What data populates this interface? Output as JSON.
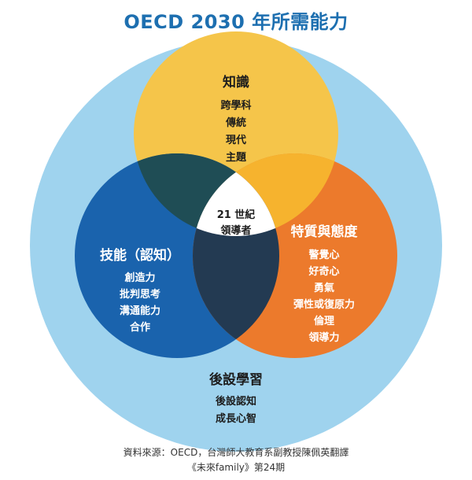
{
  "title": "OECD 2030 年所需能力",
  "center": {
    "line1": "21 世紀",
    "line2": "領導者"
  },
  "knowledge": {
    "heading": "知識",
    "items": [
      "跨學科",
      "傳統",
      "現代",
      "主題"
    ]
  },
  "skills": {
    "heading": "技能（認知）",
    "items": [
      "創造力",
      "批判思考",
      "溝通能力",
      "合作"
    ]
  },
  "character": {
    "heading": "特質與態度",
    "items": [
      "警覺心",
      "好奇心",
      "勇氣",
      "彈性或復原力",
      "倫理",
      "領導力"
    ]
  },
  "meta_learning": {
    "heading": "後設學習",
    "items": [
      "後設認知",
      "成長心智"
    ]
  },
  "source": {
    "line1": "資料來源：OECD，台灣師大教育系副教授陳佩英翻譯",
    "line2": "《未來family》第24期"
  },
  "colors": {
    "outer": "#9fd3ee",
    "knowledge": "#f5c54a",
    "skills": "#1a63ad",
    "character": "#ec7a2c",
    "overlap_ks": "#1f4d55",
    "overlap_kc": "#f6b32e",
    "overlap_sc": "#233a52",
    "center": "#ffffff"
  }
}
